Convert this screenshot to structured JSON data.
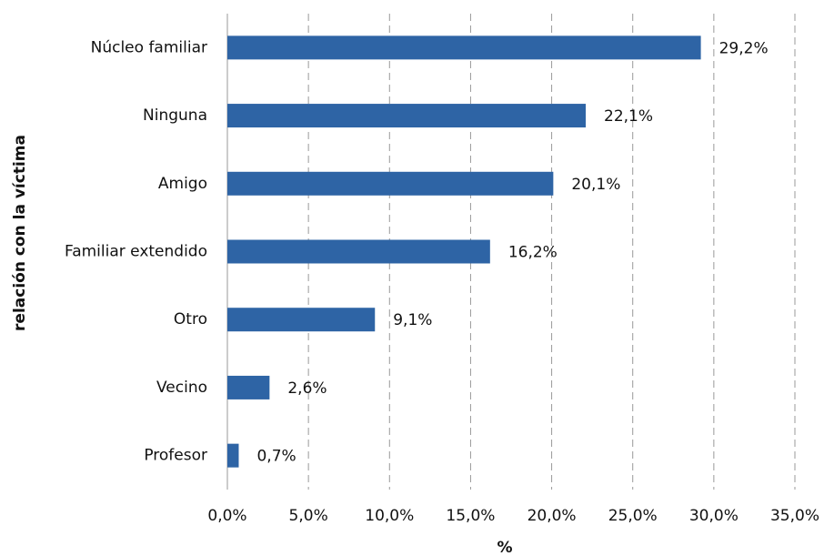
{
  "chart_data": {
    "type": "bar",
    "orientation": "horizontal",
    "xlabel": "%",
    "ylabel": "relación con la víctima",
    "categories": [
      "Núcleo familiar",
      "Ninguna",
      "Amigo",
      "Familiar extendido",
      "Otro",
      "Vecino",
      "Profesor"
    ],
    "values": [
      29.2,
      22.1,
      20.1,
      16.2,
      9.1,
      2.6,
      0.7
    ],
    "value_labels": [
      "29,2%",
      "22,1%",
      "20,1%",
      "16,2%",
      "9,1%",
      "2,6%",
      "0,7%"
    ],
    "color": "#2e64a5",
    "xlim": [
      0,
      35
    ],
    "xticks": [
      {
        "value": 0,
        "label": "0,0%"
      },
      {
        "value": 5,
        "label": "5,0%"
      },
      {
        "value": 10,
        "label": "10,0%"
      },
      {
        "value": 15,
        "label": "15,0%"
      },
      {
        "value": 20,
        "label": "20,0%"
      },
      {
        "value": 25,
        "label": "25,0%"
      },
      {
        "value": 30,
        "label": "30,0%"
      },
      {
        "value": 35,
        "label": "35,0%"
      }
    ],
    "grid": true
  }
}
